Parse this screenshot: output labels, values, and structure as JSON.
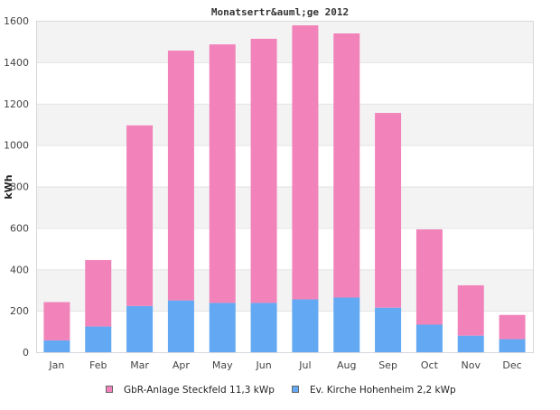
{
  "chart_data": {
    "type": "bar",
    "stacked": true,
    "title": "Monatsertr&auml;ge 2012",
    "xlabel": "",
    "ylabel": "kWh",
    "ylim": [
      0,
      1600
    ],
    "yticks": [
      0,
      200,
      400,
      600,
      800,
      1000,
      1200,
      1400,
      1600
    ],
    "grid": true,
    "legend_position": "bottom",
    "categories": [
      "Jan",
      "Feb",
      "Mar",
      "Apr",
      "May",
      "Jun",
      "Jul",
      "Aug",
      "Sep",
      "Oct",
      "Nov",
      "Dec"
    ],
    "series": [
      {
        "name": "Ev. Kirche Hohenheim 2,2 kWp",
        "color": "#62a8f2",
        "values": [
          57,
          124,
          223,
          250,
          238,
          238,
          255,
          264,
          215,
          133,
          80,
          63
        ]
      },
      {
        "name": "GbR-Anlage Steckfeld 11,3 kWp",
        "color": "#f283ba",
        "values": [
          185,
          321,
          872,
          1206,
          1248,
          1275,
          1323,
          1275,
          940,
          460,
          243,
          117
        ]
      }
    ],
    "legend_order": [
      1,
      0
    ]
  }
}
